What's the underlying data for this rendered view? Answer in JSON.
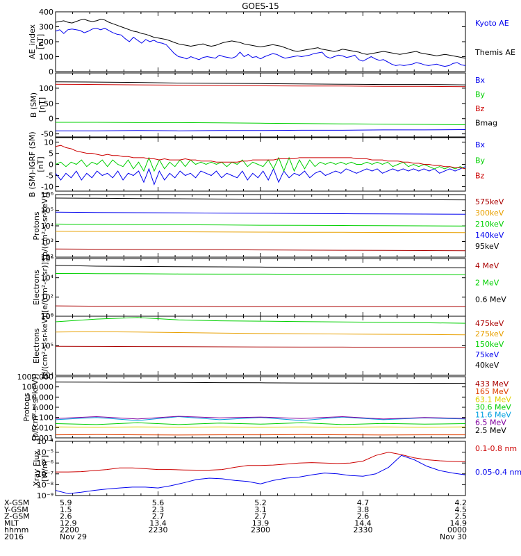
{
  "title": "GOES-15",
  "colors": {
    "black": "#000000",
    "blue": "#0000ee",
    "red": "#cc0000",
    "green": "#00d000",
    "orange": "#e8a000",
    "sky": "#00a0e0",
    "purple": "#8000a0",
    "brown": "#8b1a00",
    "darkred": "#aa0000",
    "yellow": "#e0d000",
    "redorange": "#e04000"
  },
  "chart_data": [
    {
      "type": "line",
      "ylabel": [
        "AE_index",
        "[nT]"
      ],
      "ylim": [
        0,
        400
      ],
      "yscale": "linear",
      "ticks": [
        "0",
        "100",
        "200",
        "300",
        "400"
      ],
      "series": [
        {
          "name": "Kyoto AE",
          "color": "blue",
          "label_order": 0,
          "values": [
            270,
            280,
            255,
            280,
            285,
            280,
            275,
            260,
            270,
            285,
            290,
            280,
            290,
            275,
            260,
            250,
            245,
            220,
            200,
            230,
            210,
            190,
            215,
            200,
            210,
            195,
            190,
            180,
            150,
            120,
            100,
            95,
            85,
            100,
            90,
            80,
            95,
            100,
            95,
            90,
            110,
            100,
            95,
            90,
            100,
            130,
            100,
            115,
            95,
            100,
            85,
            100,
            110,
            120,
            115,
            100,
            90,
            95,
            100,
            105,
            100,
            105,
            110,
            120,
            125,
            130,
            100,
            90,
            100,
            110,
            105,
            95,
            100,
            110,
            80,
            70,
            85,
            100,
            85,
            75,
            80,
            65,
            50,
            40,
            45,
            40,
            45,
            50,
            60,
            55,
            45,
            40,
            45,
            50,
            40,
            35,
            40,
            55,
            60,
            45,
            40
          ]
        },
        {
          "name": "Themis AE",
          "color": "black",
          "label_order": 1,
          "values": [
            330,
            335,
            340,
            330,
            325,
            335,
            345,
            350,
            340,
            335,
            340,
            350,
            345,
            330,
            320,
            310,
            300,
            290,
            280,
            270,
            265,
            255,
            250,
            240,
            230,
            225,
            220,
            215,
            205,
            195,
            185,
            180,
            175,
            170,
            175,
            180,
            185,
            175,
            170,
            175,
            185,
            195,
            200,
            205,
            200,
            195,
            185,
            180,
            175,
            170,
            165,
            170,
            175,
            180,
            175,
            170,
            160,
            150,
            140,
            135,
            140,
            145,
            150,
            155,
            160,
            150,
            145,
            140,
            135,
            140,
            150,
            145,
            140,
            135,
            130,
            120,
            115,
            120,
            125,
            130,
            135,
            130,
            125,
            120,
            115,
            120,
            125,
            130,
            135,
            125,
            120,
            115,
            110,
            105,
            110,
            115,
            110,
            105,
            100,
            95,
            90
          ]
        }
      ]
    },
    {
      "type": "line",
      "ylabel": [
        "B (SM)",
        "[nT]"
      ],
      "ylim": [
        -60,
        150
      ],
      "yscale": "linear",
      "ticks": [
        "-50",
        "0",
        "50",
        "100"
      ],
      "series": [
        {
          "name": "Bx",
          "color": "blue",
          "values": [
            -40,
            -40,
            -39,
            -40,
            -39,
            -39,
            -38,
            -38,
            -37,
            -37,
            -36
          ]
        },
        {
          "name": "By",
          "color": "green",
          "values": [
            -12,
            -12,
            -13,
            -13,
            -14,
            -15,
            -16,
            -17,
            -18,
            -19,
            -20
          ]
        },
        {
          "name": "Bz",
          "color": "red",
          "values": [
            113,
            112,
            111,
            110,
            109,
            108,
            107,
            107,
            106,
            106,
            105
          ]
        },
        {
          "name": "Bmag",
          "color": "black",
          "values": [
            121,
            120,
            119,
            117,
            116,
            115,
            114,
            113,
            112,
            112,
            111
          ]
        }
      ]
    },
    {
      "type": "line",
      "ylabel": [
        "B (SM)-IGRF (SM)",
        "[nT]"
      ],
      "ylim": [
        -12,
        12
      ],
      "yscale": "linear",
      "ticks": [
        "-10",
        "-5",
        "0",
        "5",
        "10"
      ],
      "series": [
        {
          "name": "Bx",
          "color": "blue",
          "values": [
            -4,
            -7,
            -4,
            -6,
            -3,
            -7,
            -4,
            -6,
            -3,
            -5,
            -4,
            -6,
            -3,
            -7,
            -4,
            -5,
            -3,
            -8,
            -2,
            -9,
            -3,
            -7,
            -4,
            -6,
            -3,
            -5,
            -4,
            -6,
            -3,
            -4,
            -5,
            -3,
            -6,
            -4,
            -5,
            -6,
            -3,
            -7,
            -4,
            -6,
            -3,
            -7,
            -2,
            -8,
            -3,
            -6,
            -4,
            -5,
            -3,
            -6,
            -4,
            -3,
            -5,
            -4,
            -3,
            -4,
            -2,
            -3,
            -4,
            -3,
            -2,
            -3,
            -2,
            -4,
            -3,
            -2,
            -3,
            -2,
            -3,
            -2,
            -3,
            -2,
            -3,
            -2,
            -4,
            -3,
            -2,
            -3,
            -2,
            -1
          ]
        },
        {
          "name": "By",
          "color": "green",
          "values": [
            0,
            1,
            -1,
            1,
            0,
            2,
            -1,
            1,
            0,
            2,
            -1,
            2,
            0,
            -1,
            2,
            -2,
            1,
            -3,
            3,
            -3,
            2,
            -2,
            1,
            -1,
            2,
            -1,
            2,
            0,
            1,
            0,
            1,
            0,
            1,
            -1,
            1,
            0,
            2,
            -1,
            1,
            0,
            -1,
            2,
            -2,
            3,
            -3,
            3,
            -3,
            2,
            -2,
            2,
            -1,
            1,
            0,
            1,
            0,
            1,
            0,
            1,
            0,
            0,
            1,
            0,
            1,
            0,
            1,
            -1,
            0,
            1,
            -1,
            0,
            -1,
            0,
            -1,
            -2,
            -1,
            -2,
            -1,
            -2,
            -1,
            -2
          ]
        },
        {
          "name": "Bz",
          "color": "red",
          "values": [
            8,
            8.5,
            7.5,
            7,
            6,
            5.5,
            5,
            5,
            4.5,
            4,
            4.5,
            4,
            4,
            3.5,
            3.5,
            3,
            3,
            3,
            2.5,
            2.5,
            2,
            2.5,
            2,
            2,
            2,
            2.5,
            2,
            2,
            1.5,
            1.5,
            1.5,
            1,
            1,
            1,
            1,
            1,
            1.5,
            1.5,
            2,
            2,
            2,
            2,
            2,
            2.5,
            2.5,
            2.5,
            2.5,
            3,
            3,
            3,
            3,
            3,
            3,
            3,
            3,
            3,
            3,
            3,
            2.5,
            2.5,
            2.5,
            2,
            2,
            2,
            1.5,
            1.5,
            1.5,
            1,
            1,
            0.5,
            0.5,
            0,
            0,
            -0.5,
            -0.5,
            -1,
            -1,
            -1.5,
            -1.5,
            -2
          ]
        }
      ]
    },
    {
      "type": "line",
      "ylabel": [
        "Protons",
        "[p/(cm²-s-sr-keV)]"
      ],
      "ylim": [
        100,
        1000000
      ],
      "yscale": "log",
      "ticks": [
        "10²",
        "10³",
        "10⁴",
        "10⁵",
        "10⁶"
      ],
      "series": [
        {
          "name": "575keV",
          "color": "darkred",
          "values": [
            330,
            320,
            310,
            300,
            300,
            290,
            280,
            275,
            270,
            265,
            260
          ]
        },
        {
          "name": "300keV",
          "color": "orange",
          "values": [
            4500,
            4400,
            4300,
            4200,
            4100,
            4000,
            3900,
            3850,
            3800,
            3750,
            3700
          ]
        },
        {
          "name": "210keV",
          "color": "green",
          "values": [
            13000,
            12500,
            12000,
            11800,
            11500,
            11000,
            10800,
            10500,
            10200,
            10000,
            9800
          ]
        },
        {
          "name": "140keV",
          "color": "blue",
          "values": [
            75000,
            72000,
            70000,
            68000,
            66000,
            64000,
            62000,
            60000,
            58000,
            57000,
            56000
          ]
        },
        {
          "name": "95keV",
          "color": "black",
          "values": [
            600000,
            580000,
            560000,
            540000,
            520000,
            510000,
            500000,
            490000,
            480000,
            470000,
            460000
          ]
        }
      ]
    },
    {
      "type": "line",
      "ylabel": [
        "Electrons",
        "[e/(cm²-s-sr)]"
      ],
      "ylim": [
        1,
        1000000
      ],
      "yscale": "log",
      "ticks": [
        "10⁰",
        "10²",
        "10⁴",
        "10⁶"
      ],
      "series": [
        {
          "name": "4 MeV",
          "color": "darkred",
          "values": [
            12,
            11,
            11,
            11,
            10,
            10,
            10,
            10,
            10,
            10,
            10
          ]
        },
        {
          "name": "2 MeV",
          "color": "green",
          "values": [
            28000,
            27000,
            26000,
            25000,
            24000,
            24000,
            23000,
            23000,
            22000,
            22000,
            21000
          ]
        },
        {
          "name": "0.6 MeV",
          "color": "black",
          "values": [
            200000,
            160000,
            150000,
            140000,
            135000,
            130000,
            125000,
            120000,
            118000,
            115000,
            110000
          ]
        }
      ]
    },
    {
      "type": "line",
      "ylabel": [
        "Electrons",
        "[e/(cm²-s-sr-keV)]"
      ],
      "ylim": [
        10000,
        1000000
      ],
      "yscale": "log",
      "ticks": [
        "10⁴",
        "10⁵",
        "10⁶"
      ],
      "series": [
        {
          "name": "475keV",
          "color": "darkred",
          "values": [
            96000,
            95000,
            94000,
            93000,
            92000,
            91000,
            90000,
            90000,
            89000,
            89000,
            88000
          ]
        },
        {
          "name": "275keV",
          "color": "orange",
          "values": [
            290000,
            300000,
            290000,
            280000,
            270000,
            260000,
            255000,
            250000,
            245000,
            240000,
            235000
          ]
        },
        {
          "name": "150keV",
          "color": "green",
          "values": [
            650000,
            800000,
            900000,
            750000,
            700000,
            680000,
            660000,
            640000,
            620000,
            600000,
            580000
          ]
        },
        {
          "name": "75keV",
          "color": "blue",
          "values": []
        },
        {
          "name": "40keV",
          "color": "black",
          "values": []
        }
      ]
    },
    {
      "type": "line",
      "ylabel": [
        "Protons",
        "[p/(cm²-s-sr-keV)]"
      ],
      "ylim": [
        0.001,
        1000
      ],
      "yscale": "log",
      "ticks": [
        "0.001",
        "0.010",
        "0.100",
        "1.000",
        "10.000",
        "100.000",
        "1000.000"
      ],
      "series": [
        {
          "name": "433 MeV",
          "color": "darkred",
          "values": []
        },
        {
          "name": "165 MeV",
          "color": "redorange",
          "values": [
            0.002,
            0.0021,
            0.002,
            0.0019,
            0.002,
            0.002,
            0.0021,
            0.002,
            0.0019,
            0.002,
            0.002
          ]
        },
        {
          "name": "63.1 MeV",
          "color": "yellow",
          "values": [
            0.012,
            0.011,
            0.012,
            0.011,
            0.012,
            0.011,
            0.012,
            0.011,
            0.012,
            0.011,
            0.012
          ]
        },
        {
          "name": "30.6 MeV",
          "color": "green",
          "values": [
            0.025,
            0.02,
            0.03,
            0.02,
            0.028,
            0.022,
            0.03,
            0.02,
            0.026,
            0.022,
            0.025
          ]
        },
        {
          "name": "11.6 MeV",
          "color": "sky",
          "values": [
            0.06,
            0.1,
            0.05,
            0.12,
            0.06,
            0.1,
            0.05,
            0.11,
            0.06,
            0.09,
            0.07
          ]
        },
        {
          "name": "6.5 MeV",
          "color": "purple",
          "values": [
            0.08,
            0.12,
            0.07,
            0.13,
            0.09,
            0.11,
            0.08,
            0.12,
            0.07,
            0.1,
            0.08
          ]
        },
        {
          "name": "2.5 MeV",
          "color": "black",
          "values": [
            300,
            290,
            280,
            270,
            260,
            250,
            240,
            235,
            230,
            225,
            220
          ]
        }
      ]
    },
    {
      "type": "line",
      "ylabel": [
        "Xray Flux",
        "[W/m²]"
      ],
      "ylim": [
        1e-09,
        0.0001
      ],
      "yscale": "log",
      "ticks": [
        "10⁻⁹",
        "10⁻⁸",
        "10⁻⁷",
        "10⁻⁶",
        "10⁻⁵",
        "10⁻⁴"
      ],
      "series": [
        {
          "name": "0.1-0.8 nm",
          "color": "red",
          "values": [
            1.5e-07,
            1.5e-07,
            1.6e-07,
            2e-07,
            2.5e-07,
            3.5e-07,
            3.5e-07,
            3e-07,
            2.5e-07,
            2.5e-07,
            2.3e-07,
            2.2e-07,
            2.2e-07,
            2.5e-07,
            4e-07,
            6e-07,
            6e-07,
            6.5e-07,
            8e-07,
            1e-06,
            1.1e-06,
            1e-06,
            9e-07,
            1e-06,
            1.5e-06,
            5e-06,
            1e-05,
            6e-06,
            3e-06,
            2e-06,
            1.6e-06,
            1.4e-06,
            1.3e-06
          ]
        },
        {
          "name": "0.05-0.4 nm",
          "color": "blue",
          "values": [
            3e-09,
            1.5e-09,
            2e-09,
            3e-09,
            4e-09,
            5e-09,
            6e-09,
            6e-09,
            5e-09,
            8e-09,
            1.5e-08,
            3e-08,
            4e-08,
            3.5e-08,
            2.5e-08,
            2e-08,
            1.2e-08,
            2.5e-08,
            4e-08,
            5e-08,
            8e-08,
            1.2e-07,
            1e-07,
            7e-08,
            6e-08,
            1e-07,
            4e-07,
            5e-06,
            2e-06,
            5e-07,
            2e-07,
            1.2e-07,
            8e-08
          ]
        }
      ]
    }
  ],
  "xaxis": {
    "row_labels": [
      "X-GSM",
      "Y-GSM",
      "Z-GSM",
      "MLT",
      "hhmm",
      "2016"
    ],
    "columns": [
      [
        "5.9",
        "1.5",
        "2.6",
        "12.9",
        "2200",
        "Nov 29"
      ],
      [
        "5.6",
        "2.3",
        "2.7",
        "13.4",
        "2230",
        ""
      ],
      [
        "5.2",
        "3.1",
        "2.7",
        "13.9",
        "2300",
        ""
      ],
      [
        "4.7",
        "3.8",
        "2.6",
        "14.4",
        "2330",
        ""
      ],
      [
        "4.2",
        "4.5",
        "2.5",
        "14.9",
        "0000",
        "Nov 30"
      ]
    ]
  }
}
